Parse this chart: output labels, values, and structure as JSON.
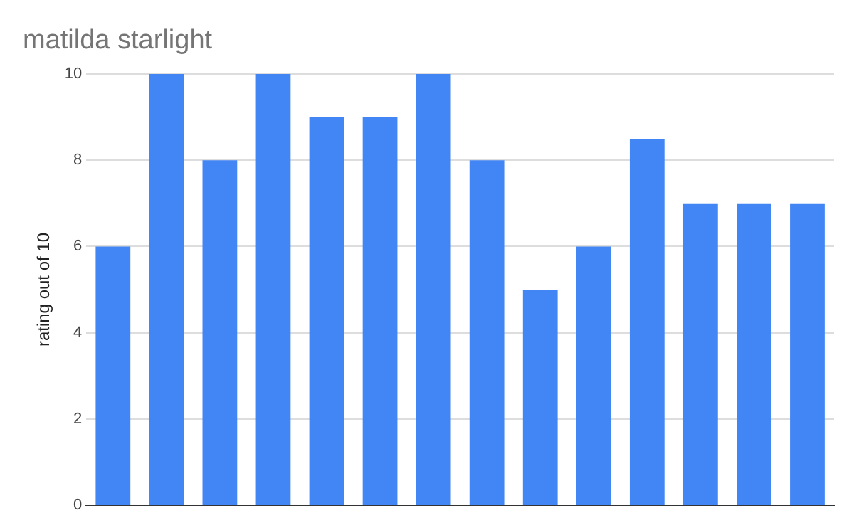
{
  "chart_data": {
    "type": "bar",
    "title": "matilda starlight",
    "ylabel": "rating out of 10",
    "categories": [
      null,
      null,
      null,
      null,
      null,
      null,
      null,
      null,
      null,
      null,
      null,
      null,
      null,
      null
    ],
    "values": [
      6,
      10,
      8,
      10,
      9,
      9,
      10,
      8,
      5,
      6,
      8.5,
      7,
      7,
      7
    ],
    "color": "#4285f4",
    "ylim": [
      0,
      10
    ],
    "yticks": [
      0,
      2,
      4,
      6,
      8,
      10
    ],
    "grid": "y",
    "legend": false
  }
}
